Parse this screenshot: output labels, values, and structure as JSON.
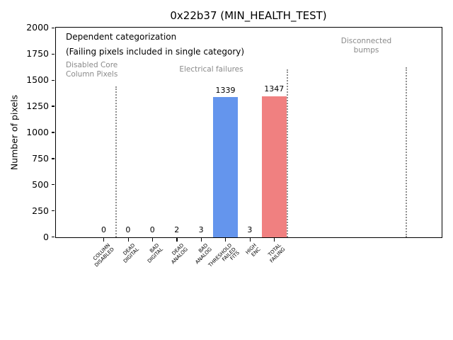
{
  "chart_data": {
    "type": "bar",
    "title": "0x22b37 (MIN_HEALTH_TEST)",
    "ylabel": "Number of pixels",
    "xlabel": "",
    "ylim": [
      0,
      2000
    ],
    "yticks": [
      0,
      250,
      500,
      750,
      1000,
      1250,
      1500,
      1750,
      2000
    ],
    "categories": [
      "COLUMN\nDISABLED",
      "DEAD\nDIGITAL",
      "BAD\nDIGITAL",
      "DEAD\nANALOG",
      "BAD\nANALOG",
      "THRESHOLD\nFAILED\nFITS",
      "HIGH\nENC",
      "TOTAL\nFAILING"
    ],
    "values": [
      0,
      0,
      0,
      2,
      3,
      1339,
      3,
      1347
    ],
    "bar_colors": [
      "#6495ED",
      "#6495ED",
      "#6495ED",
      "#6495ED",
      "#6495ED",
      "#6495ED",
      "#6495ED",
      "#F08080"
    ],
    "grid": false,
    "legend": null,
    "annotations": {
      "note_line1": "Dependent categorization",
      "note_line2": "(Failing pixels included in single category)",
      "sections": [
        {
          "label": "Disabled Core\nColumn Pixels"
        },
        {
          "label": "Electrical failures"
        },
        {
          "label": "Disconnected\nbumps"
        }
      ],
      "separator_style": "dotted"
    },
    "colors": {
      "highlight_blue": "#6495ED",
      "highlight_red": "#F08080",
      "annotation_gray": "#8a8a8a",
      "background": "#ffffff"
    }
  }
}
